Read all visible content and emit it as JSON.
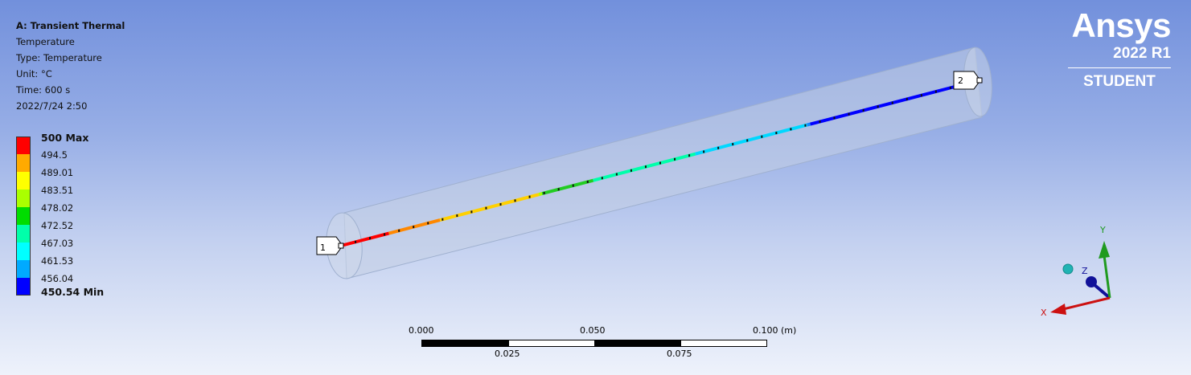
{
  "info": {
    "title": "A: Transient Thermal",
    "result": "Temperature",
    "type": "Type: Temperature",
    "unit": "Unit: °C",
    "time": "Time: 600 s",
    "datetime": "2022/7/24 2:50"
  },
  "legend": {
    "colors": [
      "#ff0000",
      "#ffaa00",
      "#ffff00",
      "#aaff00",
      "#00dd00",
      "#00ffaa",
      "#00ffff",
      "#00aaff",
      "#0000ff"
    ],
    "labels": [
      "500 Max",
      "494.5",
      "489.01",
      "483.51",
      "478.02",
      "472.52",
      "467.03",
      "461.53",
      "456.04"
    ],
    "min_label": "450.54 Min"
  },
  "logo": {
    "brand": "Ansys",
    "version": "2022 R1",
    "edition": "STUDENT"
  },
  "probes": {
    "start": "1",
    "end": "2"
  },
  "triad": {
    "x": "X",
    "y": "Y",
    "z": "Z",
    "x_color": "#cc1111",
    "y_color": "#1f9a1f",
    "z_color": "#111199",
    "iso_color": "#20b3b3"
  },
  "scale_bar": {
    "top_labels": [
      "0.000",
      "0.050",
      "0.100 (m)"
    ],
    "bottom_labels": [
      "0.025",
      "0.075"
    ]
  }
}
